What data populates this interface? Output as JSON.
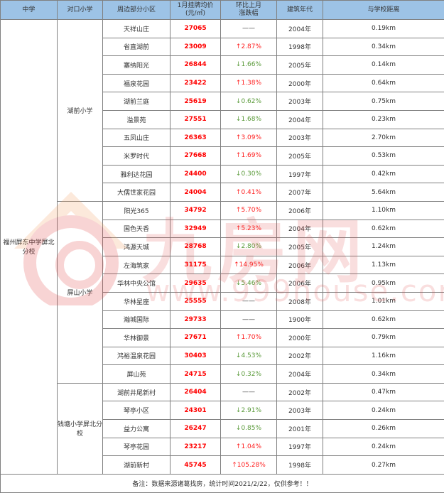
{
  "header": {
    "cols": [
      "中学",
      "对口小学",
      "周边部分小区",
      "1月挂牌均价\n(元/㎡)",
      "环比上月\n涨跌幅",
      "建筑年代",
      "与学校距离"
    ],
    "price_line1": "1月挂牌均价",
    "price_line2": "(元/㎡)",
    "change_line1": "环比上月",
    "change_line2": "涨跌幅"
  },
  "middle_school": "福州屏东中学屏北分校",
  "groups": [
    {
      "school": "湖前小学",
      "rows": [
        {
          "name": "天祥山庄",
          "price": "27065",
          "change": "——",
          "dir": "flat",
          "year": "2004年",
          "dist": "0.19km"
        },
        {
          "name": "省直湖前",
          "price": "23009",
          "change": "↑2.87%",
          "dir": "up",
          "year": "1998年",
          "dist": "0.34km"
        },
        {
          "name": "塞纳阳光",
          "price": "26844",
          "change": "↓1.66%",
          "dir": "down",
          "year": "2005年",
          "dist": "0.14km"
        },
        {
          "name": "福泉花园",
          "price": "23422",
          "change": "↑1.38%",
          "dir": "up",
          "year": "2000年",
          "dist": "0.64km"
        },
        {
          "name": "湖前兰庭",
          "price": "25619",
          "change": "↓0.62%",
          "dir": "down",
          "year": "2003年",
          "dist": "0.75km"
        },
        {
          "name": "溢景苑",
          "price": "27551",
          "change": "↓1.68%",
          "dir": "down",
          "year": "2004年",
          "dist": "0.23km"
        },
        {
          "name": "五凤山庄",
          "price": "26363",
          "change": "↑3.09%",
          "dir": "up",
          "year": "2003年",
          "dist": "2.70km"
        },
        {
          "name": "米罗时代",
          "price": "27668",
          "change": "↑1.69%",
          "dir": "up",
          "year": "2005年",
          "dist": "0.53km"
        },
        {
          "name": "雅利达花园",
          "price": "24400",
          "change": "↓0.30%",
          "dir": "down",
          "year": "1997年",
          "dist": "0.42km"
        },
        {
          "name": "大儒世家花园",
          "price": "24004",
          "change": "↑0.41%",
          "dir": "up",
          "year": "2007年",
          "dist": "5.64km"
        }
      ]
    },
    {
      "school": "屏山小学",
      "rows": [
        {
          "name": "阳光365",
          "price": "34792",
          "change": "↑5.70%",
          "dir": "up",
          "year": "2006年",
          "dist": "1.10km"
        },
        {
          "name": "国色天香",
          "price": "32949",
          "change": "↑5.23%",
          "dir": "up",
          "year": "2004年",
          "dist": "0.62km"
        },
        {
          "name": "鸿源天城",
          "price": "28768",
          "change": "↓2.80%",
          "dir": "down",
          "year": "2005年",
          "dist": "1.24km"
        },
        {
          "name": "左海筑家",
          "price": "31175",
          "change": "↑14.95%",
          "dir": "up",
          "year": "2006年",
          "dist": "1.13km"
        },
        {
          "name": "华林中央公馆",
          "price": "29635",
          "change": "↓5.46%",
          "dir": "down",
          "year": "2006年",
          "dist": "0.95km"
        },
        {
          "name": "华林星座",
          "price": "25555",
          "change": "——",
          "dir": "flat",
          "year": "2008年",
          "dist": "1.01km"
        },
        {
          "name": "瀚城国际",
          "price": "29733",
          "change": "——",
          "dir": "flat",
          "year": "1900年",
          "dist": "0.62km"
        },
        {
          "name": "华林御景",
          "price": "27671",
          "change": "↑1.70%",
          "dir": "up",
          "year": "2000年",
          "dist": "0.79km"
        },
        {
          "name": "鸿裕温泉花园",
          "price": "30403",
          "change": "↓4.53%",
          "dir": "down",
          "year": "2002年",
          "dist": "1.16km"
        },
        {
          "name": "屏山苑",
          "price": "24715",
          "change": "↓0.32%",
          "dir": "down",
          "year": "2004年",
          "dist": "0.34km"
        }
      ]
    },
    {
      "school": "钱塘小学屏北分校",
      "rows": [
        {
          "name": "湖前井尾新村",
          "price": "26404",
          "change": "——",
          "dir": "flat",
          "year": "2002年",
          "dist": "0.47km"
        },
        {
          "name": "琴亭小区",
          "price": "24301",
          "change": "↓2.91%",
          "dir": "down",
          "year": "2003年",
          "dist": "0.24km"
        },
        {
          "name": "益力公寓",
          "price": "26247",
          "change": "↓0.85%",
          "dir": "down",
          "year": "2001年",
          "dist": "0.26km"
        },
        {
          "name": "琴亭花园",
          "price": "23217",
          "change": "↑1.04%",
          "dir": "up",
          "year": "1997年",
          "dist": "0.24km"
        },
        {
          "name": "湖前新村",
          "price": "45745",
          "change": "↑105.28%",
          "dir": "up",
          "year": "1998年",
          "dist": "0.27km"
        }
      ]
    }
  ],
  "footer": "备注：数据来源诸葛找房，统计时间2021/2/22，仅供参考！！",
  "watermark": {
    "brand": "九房网",
    "url": "www.999house.com"
  },
  "colors": {
    "header_bg": "#9dc3e6",
    "price": "#ff0000",
    "up": "#ff2020",
    "down": "#5a9a3a"
  }
}
